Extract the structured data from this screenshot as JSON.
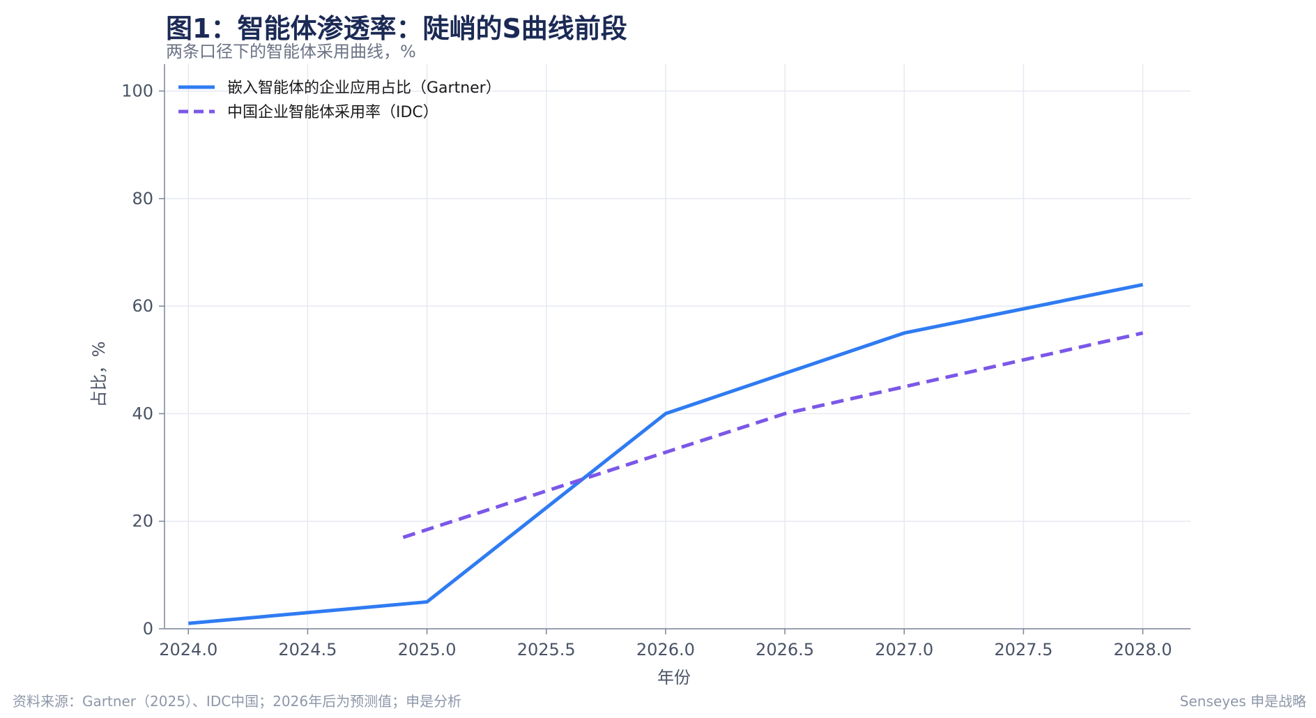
{
  "chart_data": {
    "type": "line",
    "title": "图1：智能体渗透率：陡峭的S曲线前段",
    "subtitle": "两条口径下的智能体采用曲线，%",
    "xlabel": "年份",
    "ylabel": "占比，%",
    "xlim": [
      2023.9,
      2028.2
    ],
    "ylim": [
      0,
      105
    ],
    "x_ticks": [
      "2024.0",
      "2024.5",
      "2025.0",
      "2025.5",
      "2026.0",
      "2026.5",
      "2027.0",
      "2027.5",
      "2028.0"
    ],
    "y_ticks": [
      "0",
      "20",
      "40",
      "60",
      "80",
      "100"
    ],
    "grid": true,
    "legend_position": "top-left",
    "series": [
      {
        "name": "嵌入智能体的企业应用占比（Gartner）",
        "style": "solid",
        "color": "#2f7bf2",
        "x": [
          2024.0,
          2025.0,
          2026.0,
          2027.0,
          2028.0
        ],
        "y": [
          1,
          5,
          40,
          55,
          64
        ]
      },
      {
        "name": "中国企业智能体采用率（IDC）",
        "style": "dashed",
        "color": "#7b57e8",
        "x": [
          2024.9,
          2026.5,
          2028.0
        ],
        "y": [
          17,
          40,
          55
        ]
      }
    ]
  },
  "footer": {
    "source": "资料来源：Gartner（2025）、IDC中国；2026年后为预测值；申是分析",
    "brand": "Senseyes 申是战略"
  }
}
